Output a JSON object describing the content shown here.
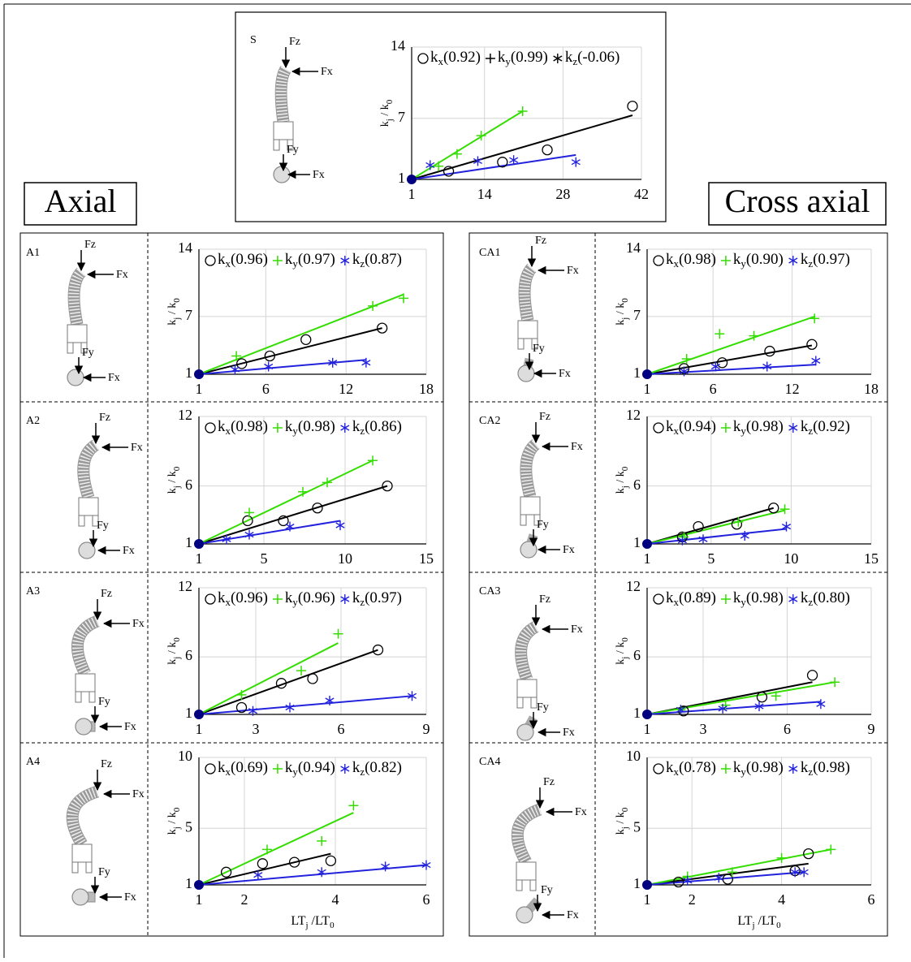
{
  "headings": [
    "Axial",
    "Cross axial"
  ],
  "chart_data": [
    {
      "type": "scatter",
      "panel": "S",
      "forces": [
        "Fz",
        "Fx",
        "Fy",
        "Fx"
      ],
      "legend_colored": false,
      "ylabel": [
        "k",
        "j",
        " / k",
        "0"
      ],
      "xlim": [
        1,
        42
      ],
      "ylim": [
        1,
        14
      ],
      "xticks": [
        1,
        14,
        28,
        42
      ],
      "yticks": [
        1,
        7,
        14
      ],
      "grid": true,
      "origin": {
        "x": 1,
        "y": 1,
        "color": "#000080"
      },
      "series": [
        {
          "name": "k",
          "subscript": "x",
          "note": "(0.92)",
          "marker": "circle",
          "color": "#000000",
          "x": [
            7.6,
            17.2,
            25.2,
            40.4
          ],
          "values": [
            1.8,
            2.7,
            3.9,
            8.2
          ],
          "fit_x": [
            1,
            40.4
          ],
          "fit_y": [
            1,
            7.3
          ]
        },
        {
          "name": "k",
          "subscript": "y",
          "note": "(0.99)",
          "marker": "plus",
          "color": "#33dd00",
          "x": [
            5.8,
            9.1,
            13.4,
            20.8
          ],
          "values": [
            2.3,
            3.5,
            5.3,
            7.7
          ],
          "fit_x": [
            1,
            20.8
          ],
          "fit_y": [
            1,
            7.7
          ]
        },
        {
          "name": "k",
          "subscript": "z",
          "note": "(-0.06)",
          "marker": "star",
          "color": "#2222dd",
          "x": [
            4.3,
            12.8,
            19.2,
            30.3
          ],
          "values": [
            2.4,
            2.8,
            2.9,
            2.7
          ],
          "fit_x": [
            1,
            30.3
          ],
          "fit_y": [
            1,
            3.4
          ]
        }
      ]
    },
    {
      "type": "scatter",
      "panel": "A1",
      "forces": [
        "Fz",
        "Fx",
        "Fy",
        "Fx"
      ],
      "legend_colored": true,
      "ylabel": [
        "k",
        "j",
        " / k",
        "0"
      ],
      "xlim": [
        1,
        18
      ],
      "ylim": [
        1,
        14
      ],
      "xticks": [
        1,
        6,
        12,
        18
      ],
      "yticks": [
        1,
        7,
        14
      ],
      "grid": true,
      "origin": {
        "x": 1,
        "y": 1,
        "color": "#000080"
      },
      "series": [
        {
          "name": "k",
          "subscript": "x",
          "note": "(0.96)",
          "marker": "circle",
          "color": "#000000",
          "x": [
            4.2,
            6.3,
            9.0,
            14.7
          ],
          "values": [
            2.1,
            2.9,
            4.6,
            5.8
          ],
          "fit_x": [
            1,
            14.7
          ],
          "fit_y": [
            1,
            5.8
          ]
        },
        {
          "name": "k",
          "subscript": "y",
          "note": "(0.97)",
          "marker": "plus",
          "color": "#33dd00",
          "x": [
            3.8,
            14.0,
            16.3
          ],
          "values": [
            2.9,
            8.1,
            8.9
          ],
          "fit_x": [
            1,
            16.3
          ],
          "fit_y": [
            1,
            9.3
          ]
        },
        {
          "name": "k",
          "subscript": "z",
          "note": "(0.87)",
          "marker": "star",
          "color": "#2222dd",
          "x": [
            3.7,
            6.2,
            11.0,
            13.5
          ],
          "values": [
            1.5,
            1.8,
            2.2,
            2.2
          ],
          "fit_x": [
            1,
            13.5
          ],
          "fit_y": [
            1,
            2.5
          ]
        }
      ]
    },
    {
      "type": "scatter",
      "panel": "A2",
      "forces": [
        "Fz",
        "Fx",
        "Fy",
        "Fx"
      ],
      "legend_colored": true,
      "ylabel": [
        "k",
        "j",
        " / k",
        "0"
      ],
      "xlim": [
        1,
        15
      ],
      "ylim": [
        1,
        12
      ],
      "xticks": [
        1,
        5,
        10,
        15
      ],
      "yticks": [
        1,
        6,
        12
      ],
      "grid": true,
      "origin": {
        "x": 1,
        "y": 1,
        "color": "#000080"
      },
      "series": [
        {
          "name": "k",
          "subscript": "x",
          "note": "(0.98)",
          "marker": "circle",
          "color": "#000000",
          "x": [
            4.0,
            6.2,
            8.3,
            12.6
          ],
          "values": [
            3.0,
            3.0,
            4.1,
            6.0
          ],
          "fit_x": [
            1,
            12.6
          ],
          "fit_y": [
            1,
            6.0
          ]
        },
        {
          "name": "k",
          "subscript": "y",
          "note": "(0.98)",
          "marker": "plus",
          "color": "#33dd00",
          "x": [
            4.1,
            7.4,
            8.9,
            11.7
          ],
          "values": [
            3.7,
            5.5,
            6.3,
            8.2
          ],
          "fit_x": [
            1,
            11.7
          ],
          "fit_y": [
            1,
            8.2
          ]
        },
        {
          "name": "k",
          "subscript": "z",
          "note": "(0.86)",
          "marker": "star",
          "color": "#2222dd",
          "x": [
            2.7,
            4.1,
            6.6,
            9.7
          ],
          "values": [
            1.4,
            1.8,
            2.5,
            2.6
          ],
          "fit_x": [
            1,
            9.7
          ],
          "fit_y": [
            1,
            3.0
          ]
        }
      ]
    },
    {
      "type": "scatter",
      "panel": "A3",
      "forces": [
        "Fz",
        "Fx",
        "Fy",
        "Fx"
      ],
      "legend_colored": true,
      "ylabel": [
        "k",
        "j",
        " / k",
        "0"
      ],
      "xlim": [
        1,
        9
      ],
      "ylim": [
        1,
        12
      ],
      "xticks": [
        1,
        3,
        6,
        9
      ],
      "yticks": [
        1,
        6,
        12
      ],
      "grid": true,
      "origin": {
        "x": 1,
        "y": 1,
        "color": "#000080"
      },
      "series": [
        {
          "name": "k",
          "subscript": "x",
          "note": "(0.96)",
          "marker": "circle",
          "color": "#000000",
          "x": [
            2.5,
            3.9,
            5.0,
            7.3
          ],
          "values": [
            1.6,
            3.7,
            4.1,
            6.6
          ],
          "fit_x": [
            1,
            7.3
          ],
          "fit_y": [
            1,
            6.6
          ]
        },
        {
          "name": "k",
          "subscript": "y",
          "note": "(0.96)",
          "marker": "plus",
          "color": "#33dd00",
          "x": [
            2.5,
            4.6,
            5.9
          ],
          "values": [
            2.7,
            4.8,
            8.0
          ],
          "fit_x": [
            1,
            5.9
          ],
          "fit_y": [
            1,
            7.2
          ]
        },
        {
          "name": "k",
          "subscript": "z",
          "note": "(0.97)",
          "marker": "star",
          "color": "#2222dd",
          "x": [
            2.9,
            4.2,
            5.6,
            8.5
          ],
          "values": [
            1.3,
            1.6,
            2.2,
            2.6
          ],
          "fit_x": [
            1,
            8.5
          ],
          "fit_y": [
            1,
            2.6
          ]
        }
      ]
    },
    {
      "type": "scatter",
      "panel": "A4",
      "forces": [
        "Fz",
        "Fx",
        "Fy",
        "Fx"
      ],
      "legend_colored": true,
      "ylabel": [
        "k",
        "j",
        " / k",
        "0"
      ],
      "xlabel": [
        "LT",
        "j",
        " /LT",
        "0"
      ],
      "xlim": [
        1,
        6
      ],
      "ylim": [
        1,
        10
      ],
      "xticks": [
        1,
        2,
        4,
        6
      ],
      "yticks": [
        1,
        5,
        10
      ],
      "grid": true,
      "origin": {
        "x": 1,
        "y": 1,
        "color": "#000080"
      },
      "series": [
        {
          "name": "k",
          "subscript": "x",
          "note": "(0.69)",
          "marker": "circle",
          "color": "#000000",
          "x": [
            1.6,
            2.4,
            3.1,
            3.9
          ],
          "values": [
            1.9,
            2.5,
            2.6,
            2.7
          ],
          "fit_x": [
            1,
            3.9
          ],
          "fit_y": [
            1,
            3.2
          ]
        },
        {
          "name": "k",
          "subscript": "y",
          "note": "(0.94)",
          "marker": "plus",
          "color": "#33dd00",
          "x": [
            2.5,
            3.7,
            4.4
          ],
          "values": [
            3.5,
            4.1,
            6.6
          ],
          "fit_x": [
            1,
            4.4
          ],
          "fit_y": [
            1,
            6.1
          ]
        },
        {
          "name": "k",
          "subscript": "z",
          "note": "(0.82)",
          "marker": "star",
          "color": "#2222dd",
          "x": [
            2.3,
            3.7,
            5.1,
            6.0
          ],
          "values": [
            1.7,
            1.9,
            2.3,
            2.4
          ],
          "fit_x": [
            1,
            6.0
          ],
          "fit_y": [
            1,
            2.4
          ]
        }
      ]
    },
    {
      "type": "scatter",
      "panel": "CA1",
      "forces": [
        "Fz",
        "Fx",
        "Fy",
        "Fx"
      ],
      "legend_colored": true,
      "ylabel": [
        "k",
        "j",
        " / k",
        "0"
      ],
      "xlim": [
        1,
        18
      ],
      "ylim": [
        1,
        14
      ],
      "xticks": [
        1,
        6,
        12,
        18
      ],
      "yticks": [
        1,
        7,
        14
      ],
      "grid": true,
      "origin": {
        "x": 1,
        "y": 1,
        "color": "#000080"
      },
      "series": [
        {
          "name": "k",
          "subscript": "x",
          "note": "(0.98)",
          "marker": "circle",
          "color": "#000000",
          "x": [
            3.8,
            6.7,
            10.3,
            13.5
          ],
          "values": [
            1.6,
            2.2,
            3.4,
            4.1
          ],
          "fit_x": [
            1,
            13.5
          ],
          "fit_y": [
            1,
            4.0
          ]
        },
        {
          "name": "k",
          "subscript": "y",
          "note": "(0.90)",
          "marker": "plus",
          "color": "#33dd00",
          "x": [
            4.0,
            6.5,
            9.1,
            13.7
          ],
          "values": [
            2.6,
            5.2,
            5.0,
            6.8
          ],
          "fit_x": [
            1,
            13.7
          ],
          "fit_y": [
            1,
            7.0
          ]
        },
        {
          "name": "k",
          "subscript": "z",
          "note": "(0.97)",
          "marker": "star",
          "color": "#2222dd",
          "x": [
            3.8,
            6.2,
            10.1,
            13.8
          ],
          "values": [
            1.3,
            1.8,
            1.8,
            2.4
          ],
          "fit_x": [
            1,
            13.8
          ],
          "fit_y": [
            1,
            2.0
          ]
        }
      ]
    },
    {
      "type": "scatter",
      "panel": "CA2",
      "forces": [
        "Fz",
        "Fx",
        "Fy",
        "Fx"
      ],
      "legend_colored": true,
      "ylabel": [
        "k",
        "j",
        " / k",
        "0"
      ],
      "xlim": [
        1,
        15
      ],
      "ylim": [
        1,
        12
      ],
      "xticks": [
        1,
        5,
        10,
        15
      ],
      "yticks": [
        1,
        6,
        12
      ],
      "grid": true,
      "origin": {
        "x": 1,
        "y": 1,
        "color": "#000080"
      },
      "series": [
        {
          "name": "k",
          "subscript": "x",
          "note": "(0.94)",
          "marker": "circle",
          "color": "#000000",
          "x": [
            3.2,
            4.2,
            6.6,
            8.9
          ],
          "values": [
            1.6,
            2.5,
            2.7,
            4.1
          ],
          "fit_x": [
            1,
            8.9
          ],
          "fit_y": [
            1,
            4.1
          ]
        },
        {
          "name": "k",
          "subscript": "y",
          "note": "(0.98)",
          "marker": "plus",
          "color": "#33dd00",
          "x": [
            3.3,
            6.7,
            9.6
          ],
          "values": [
            1.6,
            2.9,
            4.0
          ],
          "fit_x": [
            1,
            9.6
          ],
          "fit_y": [
            1,
            3.9
          ]
        },
        {
          "name": "k",
          "subscript": "z",
          "note": "(0.92)",
          "marker": "star",
          "color": "#2222dd",
          "x": [
            3.2,
            4.5,
            7.1,
            9.7
          ],
          "values": [
            1.3,
            1.4,
            1.7,
            2.5
          ],
          "fit_x": [
            1,
            9.7
          ],
          "fit_y": [
            1,
            2.3
          ]
        }
      ]
    },
    {
      "type": "scatter",
      "panel": "CA3",
      "forces": [
        "Fz",
        "Fx",
        "Fy",
        "Fx"
      ],
      "legend_colored": true,
      "ylabel": [
        "k",
        "j",
        " / k",
        "0"
      ],
      "xlim": [
        1,
        9
      ],
      "ylim": [
        1,
        12
      ],
      "xticks": [
        1,
        3,
        6,
        9
      ],
      "yticks": [
        1,
        6,
        12
      ],
      "grid": true,
      "origin": {
        "x": 1,
        "y": 1,
        "color": "#000080"
      },
      "series": [
        {
          "name": "k",
          "subscript": "x",
          "note": "(0.89)",
          "marker": "circle",
          "color": "#000000",
          "x": [
            2.3,
            5.1,
            6.9
          ],
          "values": [
            1.3,
            2.5,
            4.4
          ],
          "fit_x": [
            1,
            6.9
          ],
          "fit_y": [
            1,
            3.8
          ]
        },
        {
          "name": "k",
          "subscript": "y",
          "note": "(0.98)",
          "marker": "plus",
          "color": "#33dd00",
          "x": [
            2.2,
            3.8,
            5.6,
            7.7
          ],
          "values": [
            1.4,
            1.8,
            2.6,
            3.8
          ],
          "fit_x": [
            1,
            7.7
          ],
          "fit_y": [
            1,
            3.8
          ]
        },
        {
          "name": "k",
          "subscript": "z",
          "note": "(0.80)",
          "marker": "star",
          "color": "#2222dd",
          "x": [
            2.2,
            3.7,
            5.0,
            7.2
          ],
          "values": [
            1.4,
            1.5,
            1.7,
            1.9
          ],
          "fit_x": [
            1,
            7.2
          ],
          "fit_y": [
            1,
            2.1
          ]
        }
      ]
    },
    {
      "type": "scatter",
      "panel": "CA4",
      "forces": [
        "Fz",
        "Fx",
        "Fy",
        "Fx"
      ],
      "legend_colored": true,
      "ylabel": [
        "k",
        "j",
        " / k",
        "0"
      ],
      "xlabel": [
        "LT",
        "j",
        " /LT",
        "0"
      ],
      "xlim": [
        1,
        6
      ],
      "ylim": [
        1,
        10
      ],
      "xticks": [
        1,
        2,
        4,
        6
      ],
      "yticks": [
        1,
        5,
        10
      ],
      "grid": true,
      "origin": {
        "x": 1,
        "y": 1,
        "color": "#000080"
      },
      "series": [
        {
          "name": "k",
          "subscript": "x",
          "note": "(0.78)",
          "marker": "circle",
          "color": "#000000",
          "x": [
            1.7,
            2.8,
            4.3,
            4.6
          ],
          "values": [
            1.2,
            1.4,
            2.0,
            3.2
          ],
          "fit_x": [
            1,
            4.6
          ],
          "fit_y": [
            1,
            2.5
          ]
        },
        {
          "name": "k",
          "subscript": "y",
          "note": "(0.98)",
          "marker": "plus",
          "color": "#33dd00",
          "x": [
            1.9,
            2.9,
            4.0,
            5.1
          ],
          "values": [
            1.6,
            1.9,
            2.9,
            3.5
          ],
          "fit_x": [
            1,
            5.1
          ],
          "fit_y": [
            1,
            3.5
          ]
        },
        {
          "name": "k",
          "subscript": "z",
          "note": "(0.98)",
          "marker": "star",
          "color": "#2222dd",
          "x": [
            1.9,
            2.6,
            4.3,
            4.5
          ],
          "values": [
            1.3,
            1.5,
            1.9,
            1.9
          ],
          "fit_x": [
            1,
            4.5
          ],
          "fit_y": [
            1,
            1.9
          ]
        }
      ]
    }
  ]
}
